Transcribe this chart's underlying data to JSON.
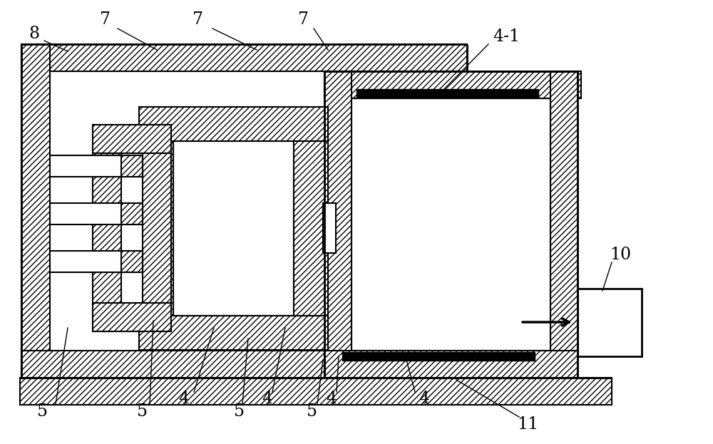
{
  "bg_color": "#ffffff",
  "line_color": "#000000",
  "figsize": [
    10.0,
    6.23
  ],
  "dpi": 100
}
